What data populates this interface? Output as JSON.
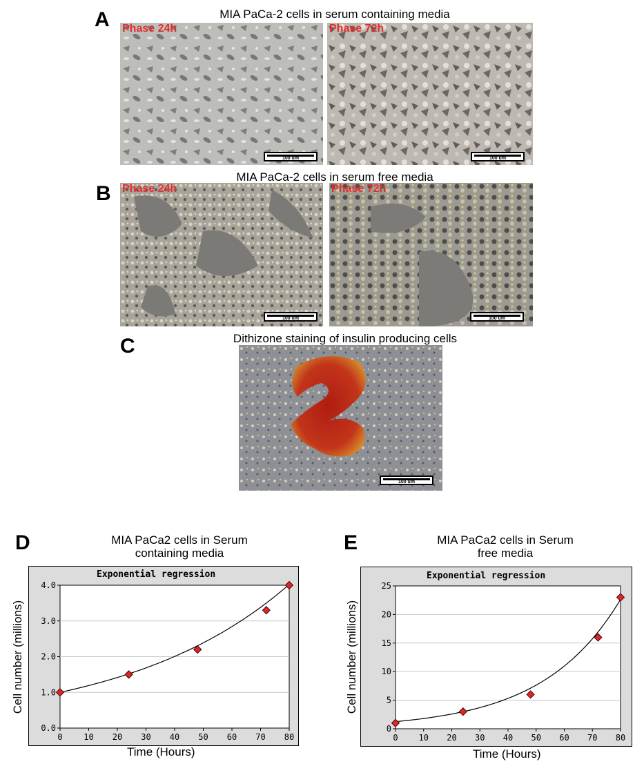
{
  "panels": {
    "A": {
      "letter": "A",
      "caption": "MIA PaCa-2 cells in serum containing media",
      "images": [
        {
          "label": "Phase 24h",
          "scale": "100 um"
        },
        {
          "label": "Phase 72h",
          "scale": "100 um"
        }
      ]
    },
    "B": {
      "letter": "B",
      "caption": "MIA PaCa-2 cells in serum free media",
      "images": [
        {
          "label": "Phase 24h",
          "scale": "100 um"
        },
        {
          "label": "Phase 72h",
          "scale": "100 um"
        }
      ]
    },
    "C": {
      "letter": "C",
      "caption": "Dithizone staining of insulin producing cells",
      "images": [
        {
          "scale": "100 um"
        }
      ]
    },
    "D": {
      "letter": "D"
    },
    "E": {
      "letter": "E"
    }
  },
  "colors": {
    "marker": "#d42a2a",
    "plot_bg": "#ffffff",
    "frame_bg": "#dcdcdc",
    "phase_label": "#e1302e"
  },
  "chart_data": [
    {
      "type": "scatter",
      "title_line1": "MIA PaCa2 cells in Serum",
      "title_line2": "containing media",
      "inner_title": "Exponential regression",
      "xlabel": "Time (Hours)",
      "ylabel": "Cell number (millions)",
      "x": [
        0,
        24,
        48,
        72,
        80
      ],
      "y": [
        1.0,
        1.5,
        2.2,
        3.3,
        4.0
      ],
      "fit": {
        "model": "exponential",
        "a": 1.0,
        "b": 0.0174
      },
      "xlim": [
        0,
        80
      ],
      "ylim": [
        0,
        4
      ],
      "xticks": [
        "0",
        "10",
        "20",
        "30",
        "40",
        "50",
        "60",
        "70",
        "80"
      ],
      "yticks": [
        "0.0",
        "1.0",
        "2.0",
        "3.0",
        "4.0"
      ],
      "grid": "horizontal"
    },
    {
      "type": "scatter",
      "title_line1": "MIA PaCa2 cells in Serum",
      "title_line2": "free media",
      "inner_title": "Exponential regression",
      "xlabel": "Time (Hours)",
      "ylabel": "Cell number (millions)",
      "x": [
        0,
        24,
        48,
        72,
        80
      ],
      "y": [
        1,
        3,
        6,
        16,
        23
      ],
      "fit": {
        "model": "exponential",
        "a": 1.25,
        "b": 0.0362
      },
      "xlim": [
        0,
        80
      ],
      "ylim": [
        0,
        25
      ],
      "xticks": [
        "0",
        "10",
        "20",
        "30",
        "40",
        "50",
        "60",
        "70",
        "80"
      ],
      "yticks": [
        "0",
        "5",
        "10",
        "15",
        "20",
        "25"
      ],
      "grid": "horizontal"
    }
  ]
}
